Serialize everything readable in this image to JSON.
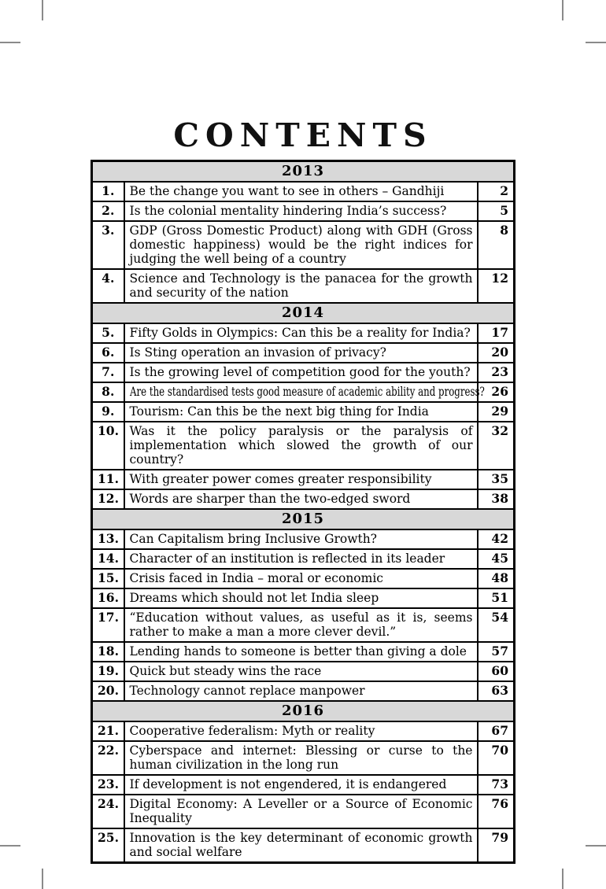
{
  "page": {
    "title": "CONTENTS"
  },
  "colors": {
    "year_header_bg": "#d8d8d8",
    "border": "#000000",
    "text": "#000000",
    "crop_mark": "#8a8a8a"
  },
  "sections": [
    {
      "year": "2013",
      "entries": [
        {
          "no": "1.",
          "title": "Be the change you want to see in others – Gandhiji",
          "page": "2"
        },
        {
          "no": "2.",
          "title": "Is the colonial mentality hindering India’s success?",
          "page": "5"
        },
        {
          "no": "3.",
          "title": "GDP (Gross Domestic Product) along with GDH (Gross domestic happiness) would be the right indices for judging the well being of a country",
          "page": "8"
        },
        {
          "no": "4.",
          "title": "Science and Technology is the panacea for the growth and security of the nation",
          "page": "12"
        }
      ]
    },
    {
      "year": "2014",
      "entries": [
        {
          "no": "5.",
          "title": "Fifty Golds in Olympics: Can this be a reality for India?",
          "page": "17"
        },
        {
          "no": "6.",
          "title": "Is Sting operation an invasion of privacy?",
          "page": "20"
        },
        {
          "no": "7.",
          "title": "Is the growing level of competition good for the youth?",
          "page": "23"
        },
        {
          "no": "8.",
          "title": "Are the standardised tests good measure of academic ability and progress?",
          "page": "26",
          "condensed": true
        },
        {
          "no": "9.",
          "title": "Tourism: Can this be the next big thing for India",
          "page": "29"
        },
        {
          "no": "10.",
          "title": "Was it the policy paralysis or the paralysis of implementation which slowed the growth of our country?",
          "page": "32"
        },
        {
          "no": "11.",
          "title": "With greater power comes greater responsibility",
          "page": "35"
        },
        {
          "no": "12.",
          "title": "Words are sharper than the two-edged sword",
          "page": "38"
        }
      ]
    },
    {
      "year": "2015",
      "entries": [
        {
          "no": "13.",
          "title": "Can Capitalism bring Inclusive Growth?",
          "page": "42"
        },
        {
          "no": "14.",
          "title": "Character of an institution is reflected in its leader",
          "page": "45"
        },
        {
          "no": "15.",
          "title": "Crisis faced in India – moral or economic",
          "page": "48"
        },
        {
          "no": "16.",
          "title": "Dreams which should not let India sleep",
          "page": "51"
        },
        {
          "no": "17.",
          "title": "“Education without values, as useful as it is, seems rather to make a man a more clever devil.”",
          "page": "54"
        },
        {
          "no": "18.",
          "title": "Lending hands to someone is better than giving a dole",
          "page": "57"
        },
        {
          "no": "19.",
          "title": "Quick but steady wins the race",
          "page": "60"
        },
        {
          "no": "20.",
          "title": "Technology cannot replace manpower",
          "page": "63"
        }
      ]
    },
    {
      "year": "2016",
      "entries": [
        {
          "no": "21.",
          "title": "Cooperative federalism: Myth or reality",
          "page": "67"
        },
        {
          "no": "22.",
          "title": "Cyberspace and internet: Blessing or curse to the human civilization in the long run",
          "page": "70"
        },
        {
          "no": "23.",
          "title": "If development is not engendered, it is endangered",
          "page": "73"
        },
        {
          "no": "24.",
          "title": "Digital Economy: A Leveller or a Source of Economic Inequality",
          "page": "76"
        },
        {
          "no": "25.",
          "title": "Innovation is the key determinant of economic growth and social welfare",
          "page": "79"
        }
      ]
    }
  ]
}
